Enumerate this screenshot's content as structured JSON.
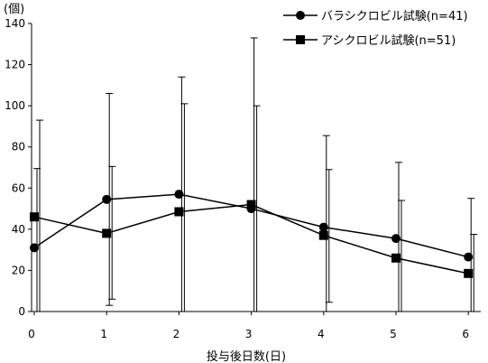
{
  "chart_data": {
    "type": "line",
    "ylabel": "(個)",
    "xlabel": "投与後日数(日)",
    "ylim": [
      0,
      140
    ],
    "xlim": [
      0,
      6.2
    ],
    "yticks": [
      0,
      20,
      40,
      60,
      80,
      100,
      120,
      140
    ],
    "xticks": [
      0,
      1,
      2,
      3,
      4,
      5,
      6
    ],
    "grid": false,
    "legend_position": "top-right",
    "series": [
      {
        "name": "バラシクロビル試験(n=41)",
        "marker": "circle",
        "color": "#000000",
        "x": [
          0,
          1,
          2,
          3,
          4,
          5,
          6
        ],
        "values": [
          31,
          54.5,
          57,
          50,
          41,
          35.5,
          26.5
        ],
        "err_upper": [
          69.5,
          106,
          114,
          133,
          85.5,
          72.5,
          55
        ],
        "err_lower": [
          0,
          3,
          0,
          0,
          0,
          0,
          0
        ]
      },
      {
        "name": "アシクロビル試験(n=51)",
        "marker": "square",
        "color": "#000000",
        "x": [
          0,
          1,
          2,
          3,
          4,
          5,
          6
        ],
        "values": [
          46,
          38,
          48.5,
          52,
          37,
          26,
          18.5
        ],
        "err_upper": [
          93,
          70.5,
          101,
          100,
          69,
          54,
          37.5
        ],
        "err_lower": [
          0,
          6,
          0,
          0,
          4.5,
          0,
          0
        ]
      }
    ]
  }
}
